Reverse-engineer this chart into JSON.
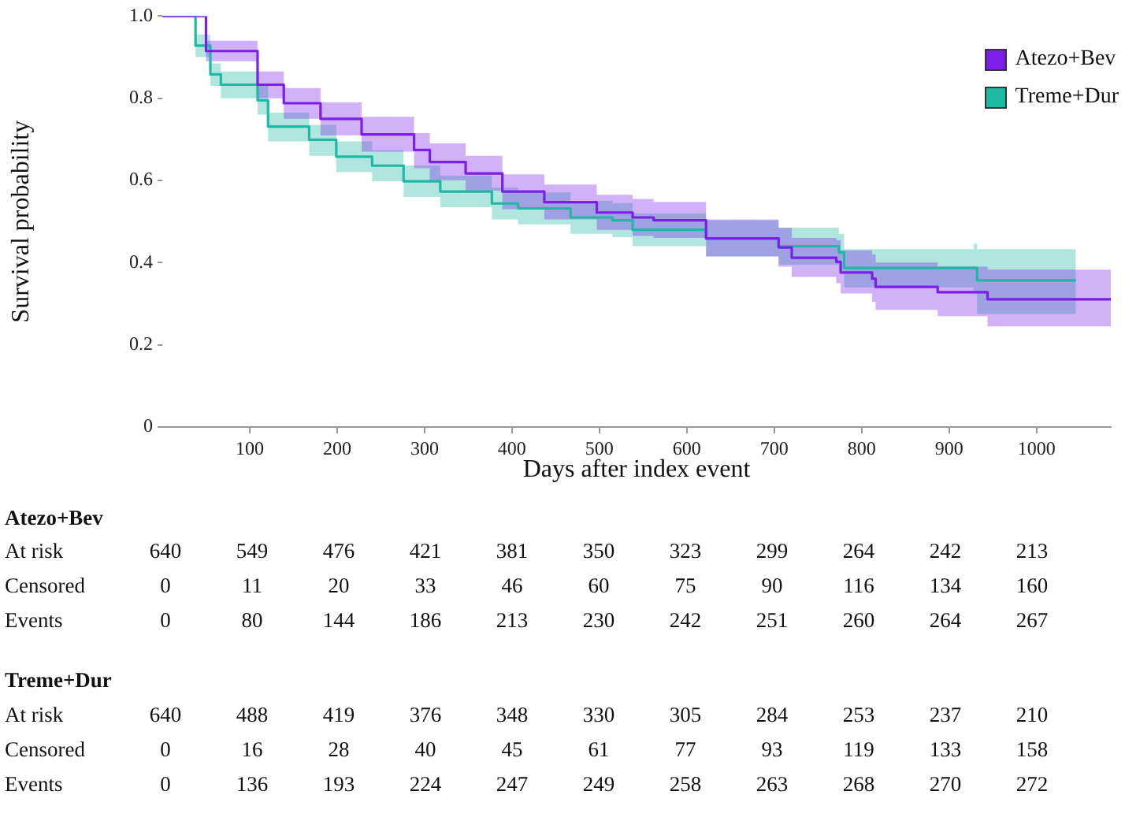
{
  "chart_data": {
    "type": "step",
    "xlabel": "Days after index event",
    "ylabel": "Survival probability",
    "xlim": [
      0,
      1085
    ],
    "xticks": [
      100,
      200,
      300,
      400,
      500,
      600,
      700,
      800,
      900,
      1000
    ],
    "ylim": [
      0,
      1
    ],
    "yticks": [
      0,
      0.2,
      0.4,
      0.6,
      0.8,
      {
        "value": 1,
        "label": "1.0"
      }
    ],
    "grid": false,
    "legend": "top right",
    "marker": "none",
    "line_style": "solid",
    "series": [
      {
        "name": "Atezo+Bev",
        "color": "#7b1fe8",
        "x": [
          0,
          50,
          109,
          139,
          181,
          228,
          288,
          306,
          347,
          389,
          437,
          497,
          538,
          562,
          622,
          705,
          720,
          771,
          776,
          812,
          816,
          887,
          944,
          1085
        ],
        "values": [
          1,
          0.915,
          0.833,
          0.788,
          0.75,
          0.712,
          0.674,
          0.645,
          0.617,
          0.573,
          0.547,
          0.522,
          0.51,
          0.503,
          0.459,
          0.437,
          0.412,
          0.402,
          0.376,
          0.361,
          0.341,
          0.328,
          0.311,
          0.311
        ],
        "lower": [
          1,
          0.89,
          0.8,
          0.75,
          0.71,
          0.67,
          0.63,
          0.6,
          0.575,
          0.53,
          0.505,
          0.48,
          0.465,
          0.46,
          0.415,
          0.39,
          0.365,
          0.35,
          0.325,
          0.305,
          0.285,
          0.27,
          0.245,
          0.245
        ],
        "upper": [
          1,
          0.94,
          0.865,
          0.825,
          0.79,
          0.755,
          0.715,
          0.69,
          0.66,
          0.615,
          0.59,
          0.565,
          0.555,
          0.548,
          0.505,
          0.485,
          0.46,
          0.455,
          0.43,
          0.42,
          0.4,
          0.39,
          0.383,
          0.383
        ]
      },
      {
        "name": "Treme+Dur",
        "color": "#1fb8a4",
        "x": [
          0,
          38,
          55,
          67,
          109,
          121,
          168,
          199,
          240,
          276,
          318,
          377,
          407,
          467,
          515,
          538,
          622,
          705,
          774,
          780,
          928,
          932,
          1045
        ],
        "values": [
          1,
          0.928,
          0.858,
          0.833,
          0.795,
          0.731,
          0.699,
          0.658,
          0.636,
          0.598,
          0.573,
          0.544,
          0.532,
          0.51,
          0.503,
          0.48,
          0.459,
          0.44,
          0.425,
          0.387,
          0.387,
          0.357,
          0.357
        ],
        "lower": [
          1,
          0.9,
          0.83,
          0.8,
          0.76,
          0.695,
          0.66,
          0.62,
          0.598,
          0.56,
          0.535,
          0.505,
          0.493,
          0.47,
          0.462,
          0.44,
          0.415,
          0.395,
          0.38,
          0.34,
          0.33,
          0.275,
          0.275
        ],
        "upper": [
          1,
          0.955,
          0.885,
          0.865,
          0.83,
          0.765,
          0.735,
          0.695,
          0.674,
          0.636,
          0.612,
          0.583,
          0.571,
          0.55,
          0.545,
          0.52,
          0.503,
          0.485,
          0.47,
          0.433,
          0.446,
          0.433,
          0.433
        ]
      }
    ],
    "annotations": [
      "Atezo+Bev",
      "At risk",
      "640",
      "549",
      "476",
      "421",
      "381",
      "350",
      "323",
      "299",
      "264",
      "242",
      "213",
      "Censored",
      "0",
      "11",
      "20",
      "33",
      "46",
      "60",
      "75",
      "90",
      "116",
      "134",
      "160",
      "Events",
      "0",
      "80",
      "144",
      "186",
      "213",
      "230",
      "242",
      "251",
      "260",
      "264",
      "267",
      "Treme+Dur",
      "At risk",
      "640",
      "488",
      "419",
      "376",
      "348",
      "330",
      "305",
      "284",
      "253",
      "237",
      "210",
      "Censored",
      "0",
      "16",
      "28",
      "40",
      "45",
      "61",
      "77",
      "93",
      "119",
      "133",
      "158",
      "Events",
      "0",
      "136",
      "193",
      "224",
      "247",
      "249",
      "258",
      "263",
      "268",
      "270",
      "272"
    ]
  }
}
